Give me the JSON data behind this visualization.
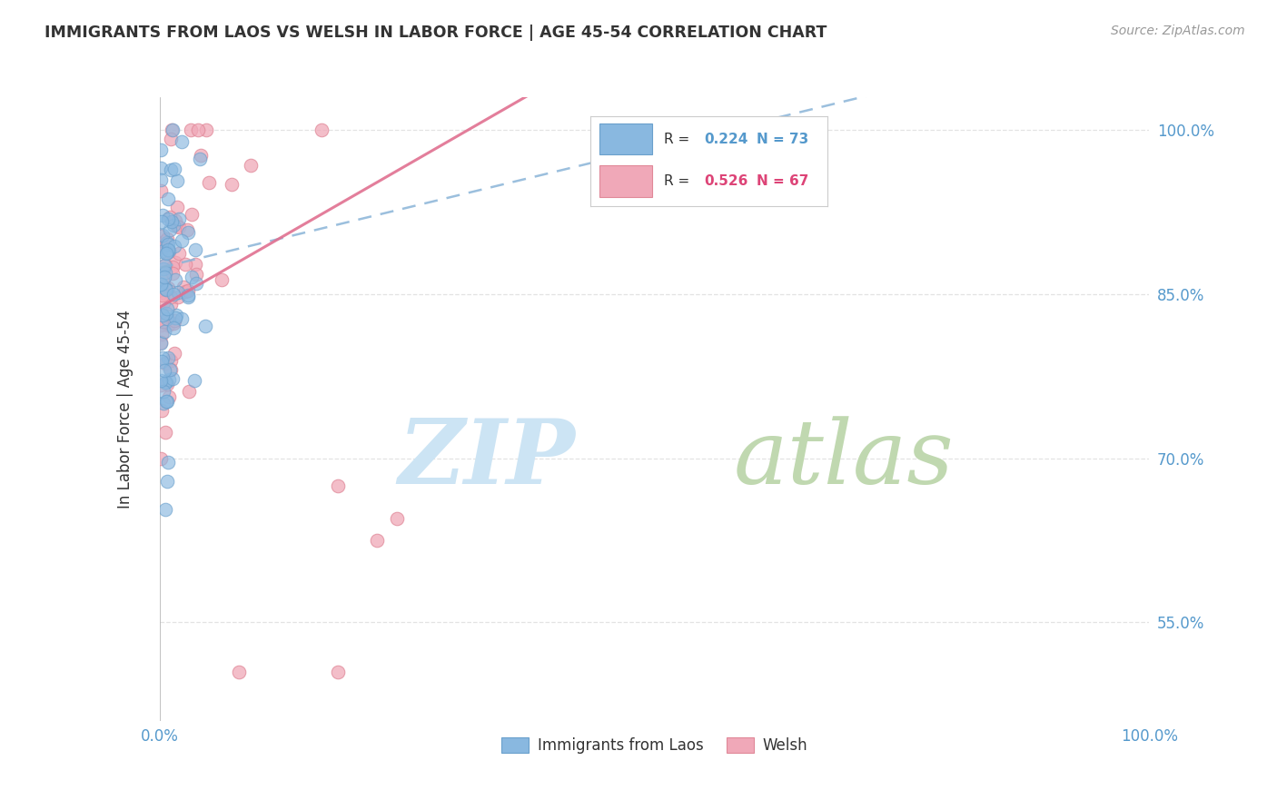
{
  "title": "IMMIGRANTS FROM LAOS VS WELSH IN LABOR FORCE | AGE 45-54 CORRELATION CHART",
  "source": "Source: ZipAtlas.com",
  "ylabel": "In Labor Force | Age 45-54",
  "xlim": [
    0.0,
    1.0
  ],
  "ylim": [
    0.46,
    1.03
  ],
  "yticks": [
    0.55,
    0.7,
    0.85,
    1.0
  ],
  "yticklabels": [
    "55.0%",
    "70.0%",
    "85.0%",
    "100.0%"
  ],
  "xticklabels": [
    "0.0%",
    "100.0%"
  ],
  "laos_color": "#89b8e0",
  "laos_edge_color": "#6aa0cc",
  "welsh_color": "#f0a8b8",
  "welsh_edge_color": "#e08898",
  "laos_line_color": "#8ab4d8",
  "welsh_line_color": "#e07090",
  "laos_R": 0.224,
  "laos_N": 73,
  "welsh_R": 0.526,
  "welsh_N": 67,
  "legend_labels": [
    "Immigrants from Laos",
    "Welsh"
  ],
  "background_color": "#ffffff",
  "tick_color": "#5599cc",
  "grid_color": "#dddddd",
  "title_color": "#333333",
  "source_color": "#999999",
  "watermark_zip_color": "#cce4f4",
  "watermark_atlas_color": "#c0d8b0"
}
